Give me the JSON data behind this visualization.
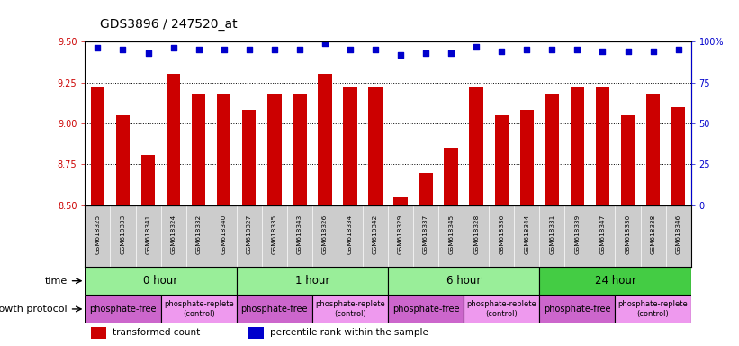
{
  "title": "GDS3896 / 247520_at",
  "samples": [
    "GSM618325",
    "GSM618333",
    "GSM618341",
    "GSM618324",
    "GSM618332",
    "GSM618340",
    "GSM618327",
    "GSM618335",
    "GSM618343",
    "GSM618326",
    "GSM618334",
    "GSM618342",
    "GSM618329",
    "GSM618337",
    "GSM618345",
    "GSM618328",
    "GSM618336",
    "GSM618344",
    "GSM618331",
    "GSM618339",
    "GSM618347",
    "GSM618330",
    "GSM618338",
    "GSM618346"
  ],
  "transformed_count": [
    9.22,
    9.05,
    8.81,
    9.3,
    9.18,
    9.18,
    9.08,
    9.18,
    9.18,
    9.3,
    9.22,
    9.22,
    8.55,
    8.7,
    8.85,
    9.22,
    9.05,
    9.08,
    9.18,
    9.22,
    9.22,
    9.05,
    9.18,
    9.1
  ],
  "percentile_rank": [
    96,
    95,
    93,
    96,
    95,
    95,
    95,
    95,
    95,
    99,
    95,
    95,
    92,
    93,
    93,
    97,
    94,
    95,
    95,
    95,
    94,
    94,
    94,
    95
  ],
  "ylim_left": [
    8.5,
    9.5
  ],
  "ylim_right": [
    0,
    100
  ],
  "yticks_left": [
    8.5,
    8.75,
    9.0,
    9.25,
    9.5
  ],
  "yticks_right": [
    0,
    25,
    50,
    75,
    100
  ],
  "bar_color": "#cc0000",
  "dot_color": "#0000cc",
  "time_groups": [
    {
      "label": "0 hour",
      "start": 0,
      "end": 6,
      "color": "#99ee99"
    },
    {
      "label": "1 hour",
      "start": 6,
      "end": 12,
      "color": "#99ee99"
    },
    {
      "label": "6 hour",
      "start": 12,
      "end": 18,
      "color": "#99ee99"
    },
    {
      "label": "24 hour",
      "start": 18,
      "end": 24,
      "color": "#44cc44"
    }
  ],
  "prot_free_color": "#cc66cc",
  "prot_replete_color": "#ee99ee",
  "protocol_groups": [
    {
      "label": "phosphate-free",
      "start": 0,
      "end": 3,
      "type": "free"
    },
    {
      "label": "phosphate-replete\n(control)",
      "start": 3,
      "end": 6,
      "type": "replete"
    },
    {
      "label": "phosphate-free",
      "start": 6,
      "end": 9,
      "type": "free"
    },
    {
      "label": "phosphate-replete\n(control)",
      "start": 9,
      "end": 12,
      "type": "replete"
    },
    {
      "label": "phosphate-free",
      "start": 12,
      "end": 15,
      "type": "free"
    },
    {
      "label": "phosphate-replete\n(control)",
      "start": 15,
      "end": 18,
      "type": "replete"
    },
    {
      "label": "phosphate-free",
      "start": 18,
      "end": 21,
      "type": "free"
    },
    {
      "label": "phosphate-replete\n(control)",
      "start": 21,
      "end": 24,
      "type": "replete"
    }
  ],
  "legend_items": [
    {
      "color": "#cc0000",
      "label": "transformed count"
    },
    {
      "color": "#0000cc",
      "label": "percentile rank within the sample"
    }
  ],
  "tick_area_color": "#cccccc",
  "bg_color": "white"
}
